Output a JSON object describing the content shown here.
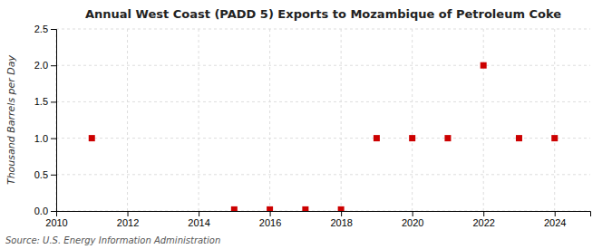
{
  "chart_data": {
    "type": "scatter",
    "title": "Annual West Coast (PADD 5) Exports to Mozambique of Petroleum Coke",
    "ylabel": "Thousand Barrels per Day",
    "annotations": [
      "Source: U.S. Energy Information Administration"
    ],
    "x": [
      2011,
      2015,
      2016,
      2017,
      2018,
      2019,
      2020,
      2021,
      2022,
      2023,
      2024
    ],
    "values": [
      1.0,
      0.02,
      0.02,
      0.02,
      0.02,
      1.0,
      1.0,
      1.0,
      2.0,
      1.0,
      1.0
    ],
    "color": "#cc0000",
    "marker": "square",
    "xlim": [
      2010,
      2025
    ],
    "ylim": [
      0.0,
      2.5
    ],
    "xticks": [
      2010,
      2012,
      2014,
      2016,
      2018,
      2020,
      2022,
      2024
    ],
    "yticks": [
      {
        "value": 0.0,
        "label": "0.0"
      },
      0.5,
      {
        "value": 1.0,
        "label": "1.0"
      },
      1.5,
      {
        "value": 2.0,
        "label": "2.0"
      },
      2.5
    ],
    "grid": true
  }
}
